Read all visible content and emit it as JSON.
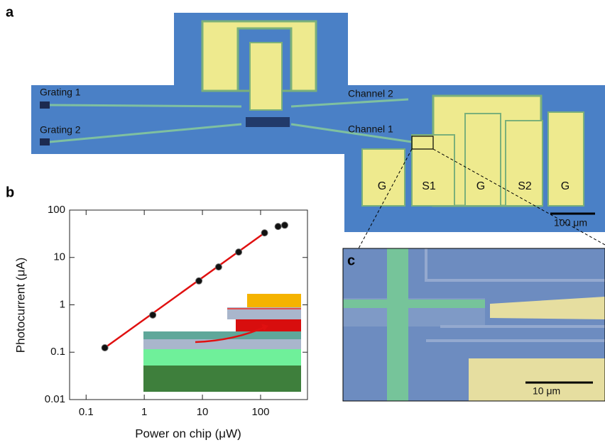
{
  "panels": {
    "a": "a",
    "b": "b",
    "c": "c"
  },
  "image_a": {
    "grating_1": "Grating 1",
    "grating_2": "Grating 2",
    "channel_2": "Channel 2",
    "channel_1": "Channel 1",
    "pads": [
      "G",
      "S1",
      "G",
      "S2",
      "G"
    ],
    "scale_bar": "100 μm"
  },
  "image_c": {
    "scale_bar": "10 μm"
  },
  "chart_data": {
    "type": "scatter",
    "xlabel": "Power on chip (μW)",
    "ylabel": "Photocurrent (μA)",
    "xscale": "log",
    "yscale": "log",
    "xlim": [
      0.052,
      640
    ],
    "ylim": [
      0.01,
      100
    ],
    "xticks": [
      0.1,
      1,
      10,
      100
    ],
    "yticks": [
      0.01,
      0.1,
      1,
      10,
      100
    ],
    "series": [
      {
        "type": "scatter",
        "color": "#111111",
        "x": [
          0.21,
          1.4,
          8.7,
          19,
          42,
          117,
          200,
          260
        ],
        "values": [
          0.124,
          0.61,
          3.2,
          6.3,
          13,
          33,
          45,
          48
        ]
      },
      {
        "type": "line",
        "color": "#e01010",
        "x": [
          0.21,
          117
        ],
        "values": [
          0.124,
          33
        ]
      }
    ]
  }
}
